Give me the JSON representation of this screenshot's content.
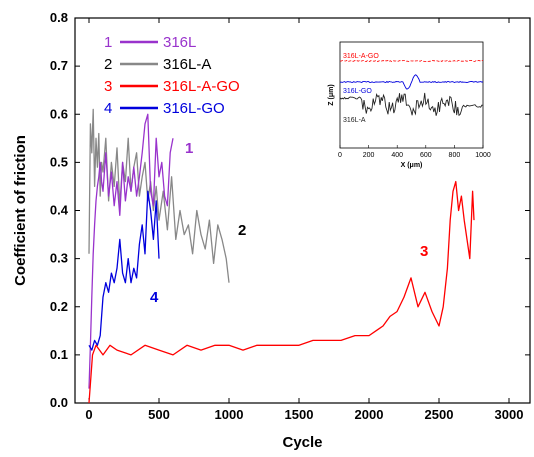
{
  "chart_data": [
    {
      "type": "line",
      "xlabel": "Cycle",
      "ylabel": "Coefficient of friction",
      "xlim": [
        -100,
        3150
      ],
      "ylim": [
        0,
        0.8
      ],
      "xticks": [
        0,
        500,
        1000,
        1500,
        2000,
        2500,
        3000
      ],
      "yticks": [
        0.0,
        0.1,
        0.2,
        0.3,
        0.4,
        0.5,
        0.6,
        0.7,
        0.8
      ],
      "legend_position": "top-left",
      "series": [
        {
          "name": "316L",
          "legend_number": "1",
          "curve_label": "1",
          "color": "#9933cc",
          "x": [
            0,
            10,
            20,
            30,
            40,
            50,
            60,
            70,
            80,
            90,
            100,
            120,
            140,
            160,
            180,
            200,
            220,
            240,
            260,
            280,
            300,
            320,
            340,
            360,
            380,
            400,
            420,
            440,
            460,
            480,
            500,
            520,
            540,
            560,
            580,
            600
          ],
          "y": [
            0.03,
            0.12,
            0.22,
            0.31,
            0.37,
            0.42,
            0.45,
            0.47,
            0.5,
            0.46,
            0.44,
            0.52,
            0.43,
            0.48,
            0.41,
            0.46,
            0.39,
            0.5,
            0.42,
            0.47,
            0.44,
            0.49,
            0.43,
            0.47,
            0.52,
            0.58,
            0.6,
            0.44,
            0.41,
            0.55,
            0.47,
            0.5,
            0.43,
            0.41,
            0.52,
            0.55
          ]
        },
        {
          "name": "316L-A",
          "legend_number": "2",
          "curve_label": "2",
          "color": "#888888",
          "x": [
            0,
            10,
            20,
            30,
            40,
            50,
            60,
            70,
            80,
            90,
            100,
            120,
            140,
            160,
            180,
            200,
            220,
            240,
            260,
            280,
            300,
            320,
            340,
            360,
            380,
            400,
            420,
            440,
            460,
            480,
            500,
            530,
            560,
            590,
            620,
            650,
            680,
            710,
            740,
            770,
            800,
            830,
            860,
            890,
            920,
            950,
            980,
            1000
          ],
          "y": [
            0.31,
            0.58,
            0.52,
            0.61,
            0.45,
            0.55,
            0.49,
            0.56,
            0.43,
            0.5,
            0.48,
            0.55,
            0.42,
            0.5,
            0.45,
            0.53,
            0.41,
            0.5,
            0.46,
            0.55,
            0.44,
            0.49,
            0.52,
            0.43,
            0.47,
            0.5,
            0.42,
            0.46,
            0.4,
            0.45,
            0.38,
            0.44,
            0.36,
            0.47,
            0.34,
            0.4,
            0.35,
            0.37,
            0.31,
            0.4,
            0.35,
            0.32,
            0.38,
            0.29,
            0.37,
            0.34,
            0.3,
            0.25
          ]
        },
        {
          "name": "316L-A-GO",
          "legend_number": "3",
          "curve_label": "3",
          "color": "#ff0000",
          "x": [
            0,
            25,
            50,
            100,
            150,
            200,
            300,
            400,
            500,
            600,
            700,
            800,
            900,
            1000,
            1100,
            1200,
            1300,
            1400,
            1500,
            1600,
            1700,
            1800,
            1900,
            2000,
            2050,
            2100,
            2150,
            2200,
            2250,
            2300,
            2350,
            2400,
            2450,
            2500,
            2530,
            2560,
            2580,
            2600,
            2620,
            2640,
            2660,
            2680,
            2700,
            2720,
            2740,
            2750
          ],
          "y": [
            0.0,
            0.1,
            0.12,
            0.1,
            0.12,
            0.11,
            0.1,
            0.12,
            0.11,
            0.1,
            0.12,
            0.11,
            0.12,
            0.12,
            0.11,
            0.12,
            0.12,
            0.12,
            0.12,
            0.13,
            0.13,
            0.13,
            0.14,
            0.14,
            0.15,
            0.16,
            0.18,
            0.19,
            0.22,
            0.26,
            0.2,
            0.23,
            0.19,
            0.16,
            0.2,
            0.28,
            0.38,
            0.44,
            0.46,
            0.4,
            0.43,
            0.38,
            0.34,
            0.3,
            0.44,
            0.38
          ]
        },
        {
          "name": "316L-GO",
          "legend_number": "4",
          "curve_label": "4",
          "color": "#0000dd",
          "x": [
            0,
            20,
            40,
            60,
            80,
            100,
            120,
            140,
            160,
            180,
            200,
            220,
            240,
            260,
            280,
            300,
            320,
            340,
            360,
            380,
            400,
            420,
            440,
            460,
            480,
            500
          ],
          "y": [
            0.12,
            0.11,
            0.13,
            0.12,
            0.14,
            0.22,
            0.25,
            0.23,
            0.27,
            0.25,
            0.28,
            0.34,
            0.27,
            0.25,
            0.3,
            0.25,
            0.28,
            0.26,
            0.33,
            0.37,
            0.31,
            0.44,
            0.4,
            0.34,
            0.42,
            0.3
          ]
        }
      ]
    },
    {
      "type": "line",
      "xlabel": "X (μm)",
      "ylabel": "Z (μm)",
      "xlim": [
        0,
        1000
      ],
      "xticks": [
        0,
        200,
        400,
        600,
        800,
        1000
      ],
      "series": [
        {
          "name": "316L-A-GO",
          "color": "#ff0000"
        },
        {
          "name": "316L-GO",
          "color": "#0000dd"
        },
        {
          "name": "316L-A",
          "color": "#222222"
        }
      ]
    }
  ]
}
